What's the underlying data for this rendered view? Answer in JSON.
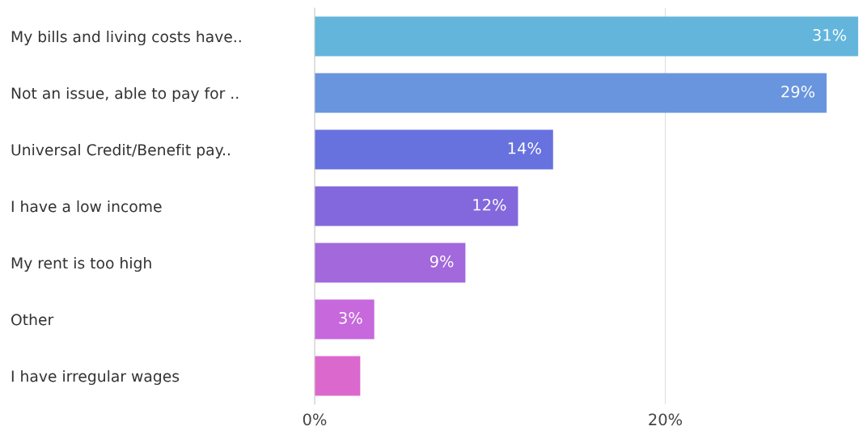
{
  "chart_data": {
    "type": "bar",
    "orientation": "horizontal",
    "categories": [
      "My bills and living costs have..",
      "Not an issue, able to pay for ..",
      "Universal Credit/Benefit pay..",
      "I have a low income",
      "My rent is too high",
      "Other",
      "I have irregular wages"
    ],
    "values": [
      31,
      29.2,
      13.6,
      11.6,
      8.6,
      3.4,
      2.6
    ],
    "value_labels": [
      "31%",
      "29%",
      "14%",
      "12%",
      "9%",
      "3%",
      null
    ],
    "colors": [
      "#63b5dc",
      "#6895de",
      "#6772de",
      "#8268dc",
      "#a268dc",
      "#c768dc",
      "#db68cc"
    ],
    "xlim": [
      0,
      31
    ],
    "xticks": [
      {
        "value": 0,
        "label": "0%"
      },
      {
        "value": 20,
        "label": "20%"
      }
    ],
    "grid": "x"
  }
}
